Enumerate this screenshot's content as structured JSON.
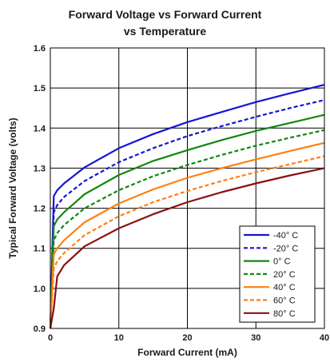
{
  "chart_data": {
    "type": "line",
    "title_line1": "Forward Voltage vs Forward Current",
    "title_line2": "vs Temperature",
    "xlabel": "Forward Current (mA)",
    "ylabel": "Typical Forward Voltage (volts)",
    "xlim": [
      0,
      40
    ],
    "ylim": [
      0.9,
      1.6
    ],
    "xticks": [
      "0",
      "10",
      "20",
      "30",
      "40"
    ],
    "yticks": [
      "0.9",
      "1.0",
      "1.1",
      "1.2",
      "1.3",
      "1.4",
      "1.5",
      "1.6"
    ],
    "grid": true,
    "legend_position": "bottom-right",
    "x": [
      0,
      0.5,
      1,
      2,
      5,
      10,
      15,
      20,
      25,
      30,
      35,
      40
    ],
    "series": [
      {
        "name": "-40° C",
        "color": "#1515d6",
        "dash": false,
        "values": [
          0.9,
          1.23,
          1.245,
          1.262,
          1.302,
          1.35,
          1.385,
          1.415,
          1.44,
          1.465,
          1.487,
          1.508
        ]
      },
      {
        "name": "-20° C",
        "color": "#1515d6",
        "dash": true,
        "values": [
          0.9,
          1.19,
          1.208,
          1.228,
          1.268,
          1.315,
          1.35,
          1.38,
          1.405,
          1.428,
          1.45,
          1.47
        ]
      },
      {
        "name": "0° C",
        "color": "#118811",
        "dash": false,
        "values": [
          0.9,
          1.155,
          1.172,
          1.19,
          1.235,
          1.283,
          1.318,
          1.345,
          1.37,
          1.393,
          1.413,
          1.433
        ]
      },
      {
        "name": "20° C",
        "color": "#118811",
        "dash": true,
        "values": [
          0.9,
          1.12,
          1.138,
          1.158,
          1.2,
          1.245,
          1.28,
          1.308,
          1.333,
          1.356,
          1.376,
          1.395
        ]
      },
      {
        "name": "40° C",
        "color": "#ff7f11",
        "dash": false,
        "values": [
          0.9,
          1.085,
          1.1,
          1.12,
          1.165,
          1.212,
          1.247,
          1.276,
          1.3,
          1.322,
          1.343,
          1.363
        ]
      },
      {
        "name": "60° C",
        "color": "#ff7f11",
        "dash": true,
        "values": [
          0.9,
          1.05,
          1.068,
          1.088,
          1.133,
          1.18,
          1.215,
          1.243,
          1.268,
          1.29,
          1.31,
          1.33
        ]
      },
      {
        "name": "80° C",
        "color": "#8b1010",
        "dash": false,
        "values": [
          0.9,
          0.95,
          1.03,
          1.058,
          1.105,
          1.15,
          1.185,
          1.215,
          1.24,
          1.262,
          1.282,
          1.3
        ]
      }
    ]
  }
}
